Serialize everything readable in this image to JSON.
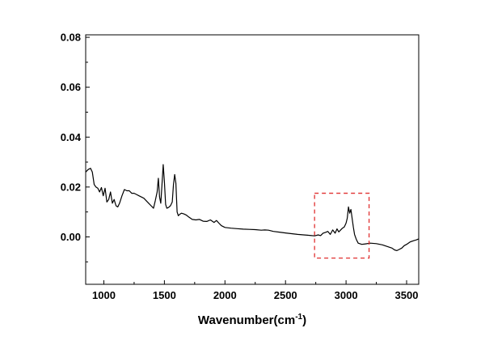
{
  "chart_data": {
    "type": "line",
    "title": "",
    "xlabel": "Wavenumber(cm",
    "xlabel_sup": "-1",
    "xlabel_close": ")",
    "ylabel": "",
    "xlim": [
      850,
      3600
    ],
    "ylim": [
      -0.019,
      0.081
    ],
    "xticks": [
      1000,
      1500,
      2000,
      2500,
      3000,
      3500
    ],
    "xtick_labels": [
      "1000",
      "1500",
      "2000",
      "2500",
      "3000",
      "3500"
    ],
    "yticks": [
      0.0,
      0.02,
      0.04,
      0.06,
      0.08
    ],
    "ytick_labels": [
      "0.00",
      "0.02",
      "0.04",
      "0.06",
      "0.08"
    ],
    "grid": false,
    "line_color": "#000000",
    "highlight_box": {
      "x_range": [
        2740,
        3190
      ],
      "y_range": [
        -0.0085,
        0.0175
      ],
      "color": "#e03030",
      "style": "dashed"
    },
    "series": [
      {
        "x": [
          850,
          870,
          890,
          905,
          920,
          935,
          950,
          965,
          980,
          995,
          1010,
          1025,
          1040,
          1055,
          1070,
          1085,
          1100,
          1115,
          1130,
          1150,
          1170,
          1190,
          1210,
          1230,
          1250,
          1270,
          1290,
          1310,
          1330,
          1350,
          1370,
          1390,
          1410,
          1425,
          1440,
          1450,
          1460,
          1470,
          1480,
          1490,
          1500,
          1510,
          1520,
          1535,
          1550,
          1565,
          1575,
          1585,
          1595,
          1605,
          1615,
          1625,
          1640,
          1660,
          1680,
          1700,
          1730,
          1760,
          1790,
          1820,
          1850,
          1880,
          1910,
          1930,
          1950,
          1970,
          2000,
          2050,
          2100,
          2150,
          2200,
          2250,
          2300,
          2330,
          2360,
          2400,
          2450,
          2500,
          2550,
          2600,
          2650,
          2700,
          2740,
          2770,
          2790,
          2810,
          2830,
          2850,
          2870,
          2890,
          2910,
          2925,
          2940,
          2955,
          2970,
          2985,
          3000,
          3010,
          3020,
          3030,
          3040,
          3050,
          3060,
          3070,
          3085,
          3100,
          3130,
          3160,
          3200,
          3250,
          3300,
          3350,
          3380,
          3400,
          3420,
          3440,
          3460,
          3480,
          3500,
          3530,
          3560,
          3580,
          3600
        ],
        "y": [
          0.026,
          0.027,
          0.0275,
          0.026,
          0.021,
          0.02,
          0.0195,
          0.018,
          0.0198,
          0.0165,
          0.0195,
          0.014,
          0.015,
          0.018,
          0.0135,
          0.015,
          0.0125,
          0.012,
          0.0135,
          0.0165,
          0.019,
          0.0185,
          0.0185,
          0.0175,
          0.0175,
          0.017,
          0.0165,
          0.016,
          0.0155,
          0.0145,
          0.0135,
          0.0125,
          0.0115,
          0.0145,
          0.018,
          0.0235,
          0.016,
          0.0135,
          0.021,
          0.029,
          0.022,
          0.013,
          0.0115,
          0.0118,
          0.0125,
          0.014,
          0.021,
          0.025,
          0.0215,
          0.01,
          0.0085,
          0.009,
          0.0095,
          0.0092,
          0.0088,
          0.008,
          0.007,
          0.0068,
          0.007,
          0.0063,
          0.0062,
          0.0068,
          0.0058,
          0.0066,
          0.0055,
          0.0045,
          0.0038,
          0.0035,
          0.0033,
          0.0031,
          0.003,
          0.0029,
          0.0027,
          0.0028,
          0.0027,
          0.0022,
          0.0019,
          0.0016,
          0.0013,
          0.001,
          0.0008,
          0.0006,
          0.0004,
          0.0008,
          0.0005,
          0.0015,
          0.0018,
          0.0022,
          0.001,
          0.0028,
          0.0015,
          0.0032,
          0.002,
          0.0028,
          0.0035,
          0.004,
          0.0055,
          0.0075,
          0.012,
          0.0095,
          0.011,
          0.0075,
          0.004,
          0.001,
          -0.001,
          -0.0025,
          -0.003,
          -0.0028,
          -0.0025,
          -0.0027,
          -0.0032,
          -0.004,
          -0.0045,
          -0.0052,
          -0.0055,
          -0.005,
          -0.0045,
          -0.0035,
          -0.003,
          -0.002,
          -0.0015,
          -0.0012,
          -0.0008
        ]
      }
    ]
  }
}
